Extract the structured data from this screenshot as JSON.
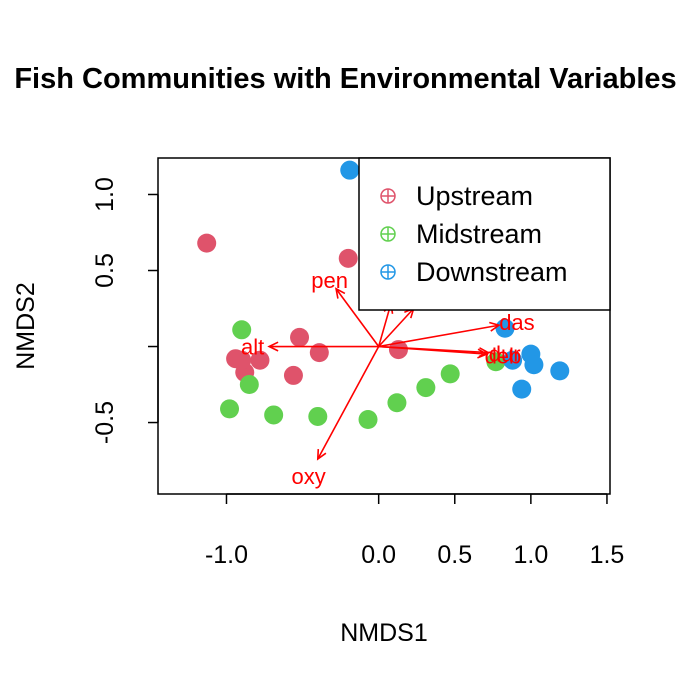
{
  "chart_data": {
    "type": "scatter",
    "title": "Fish Communities with Environmental Variables",
    "xlabel": "NMDS1",
    "ylabel": "NMDS2",
    "xlim": [
      -1.45,
      1.52
    ],
    "ylim": [
      -0.97,
      1.24
    ],
    "x_ticks": [
      -1.0,
      0.0,
      0.5,
      1.0,
      1.5
    ],
    "x_tick_labels": [
      "-1.0",
      "0.0",
      "0.5",
      "1.0",
      "1.5"
    ],
    "y_ticks": [
      -0.5,
      0.0,
      0.5,
      1.0
    ],
    "y_tick_labels": [
      "-0.5",
      "",
      "0.5",
      "1.0"
    ],
    "legend": {
      "position": "top-right"
    },
    "series": [
      {
        "name": "Upstream",
        "color": "#DF536B",
        "points": [
          [
            -1.13,
            0.68
          ],
          [
            -0.94,
            -0.08
          ],
          [
            -0.78,
            -0.09
          ],
          [
            -0.88,
            -0.17
          ],
          [
            -0.52,
            0.06
          ],
          [
            -0.56,
            -0.19
          ],
          [
            -0.39,
            -0.04
          ],
          [
            -0.2,
            0.58
          ],
          [
            0.13,
            -0.02
          ],
          [
            -0.9,
            -0.09
          ]
        ]
      },
      {
        "name": "Midstream",
        "color": "#61D04F",
        "points": [
          [
            -0.9,
            0.11
          ],
          [
            -0.85,
            -0.25
          ],
          [
            -0.98,
            -0.41
          ],
          [
            -0.69,
            -0.45
          ],
          [
            -0.4,
            -0.46
          ],
          [
            -0.07,
            -0.48
          ],
          [
            0.12,
            -0.37
          ],
          [
            0.31,
            -0.27
          ],
          [
            0.47,
            -0.18
          ],
          [
            0.77,
            -0.1
          ]
        ]
      },
      {
        "name": "Downstream",
        "color": "#2297E6",
        "points": [
          [
            -0.19,
            1.16
          ],
          [
            0.83,
            0.12
          ],
          [
            0.88,
            -0.09
          ],
          [
            1.0,
            -0.05
          ],
          [
            1.02,
            -0.12
          ],
          [
            1.19,
            -0.16
          ],
          [
            0.94,
            -0.28
          ]
        ]
      }
    ],
    "vectors": [
      {
        "label": "pen",
        "x": -0.28,
        "y": 0.38
      },
      {
        "label": "das",
        "x": 0.79,
        "y": 0.14
      },
      {
        "label": "alt",
        "x": -0.72,
        "y": 0.0
      },
      {
        "label": "dur",
        "x": 0.72,
        "y": -0.04
      },
      {
        "label": "deb",
        "x": 0.71,
        "y": -0.05
      },
      {
        "label": "oxy",
        "x": -0.4,
        "y": -0.74
      },
      {
        "label": "",
        "x": 0.08,
        "y": 0.28
      },
      {
        "label": "",
        "x": 0.23,
        "y": 0.25
      }
    ],
    "vector_color": "#FF0000"
  }
}
